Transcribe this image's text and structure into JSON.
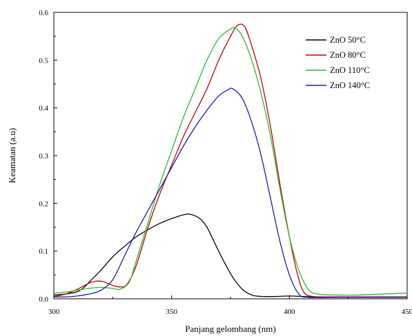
{
  "chart_data": {
    "type": "line",
    "xlabel": "Panjang gelombang (nm)",
    "ylabel": "Keamatan (a.u)",
    "xlim": [
      300,
      450
    ],
    "ylim": [
      0,
      0.6
    ],
    "x_ticks": [
      300,
      350,
      400,
      450
    ],
    "y_ticks": [
      "0.0",
      "0.1",
      "0.2",
      "0.3",
      "0.4",
      "0.5",
      "0.6"
    ],
    "grid": false,
    "legend_position": "top-right",
    "series": [
      {
        "name": "ZnO 50°C",
        "color": "#000000",
        "points": [
          [
            300,
            0.008
          ],
          [
            305,
            0.01
          ],
          [
            310,
            0.015
          ],
          [
            313,
            0.025
          ],
          [
            316,
            0.04
          ],
          [
            320,
            0.06
          ],
          [
            325,
            0.088
          ],
          [
            330,
            0.11
          ],
          [
            335,
            0.13
          ],
          [
            340,
            0.145
          ],
          [
            345,
            0.158
          ],
          [
            350,
            0.168
          ],
          [
            355,
            0.176
          ],
          [
            358,
            0.177
          ],
          [
            362,
            0.168
          ],
          [
            365,
            0.15
          ],
          [
            368,
            0.12
          ],
          [
            372,
            0.08
          ],
          [
            376,
            0.045
          ],
          [
            380,
            0.02
          ],
          [
            384,
            0.008
          ],
          [
            388,
            0.005
          ],
          [
            395,
            0.005
          ],
          [
            400,
            0.006
          ],
          [
            405,
            0.005
          ],
          [
            410,
            0.004
          ],
          [
            420,
            0.004
          ],
          [
            430,
            0.004
          ],
          [
            440,
            0.004
          ],
          [
            450,
            0.004
          ]
        ]
      },
      {
        "name": "ZnO 80°C",
        "color": "#c00000",
        "points": [
          [
            300,
            0.005
          ],
          [
            305,
            0.01
          ],
          [
            310,
            0.02
          ],
          [
            315,
            0.033
          ],
          [
            318,
            0.037
          ],
          [
            321,
            0.036
          ],
          [
            325,
            0.028
          ],
          [
            328,
            0.025
          ],
          [
            331,
            0.03
          ],
          [
            335,
            0.07
          ],
          [
            340,
            0.15
          ],
          [
            345,
            0.22
          ],
          [
            350,
            0.28
          ],
          [
            355,
            0.34
          ],
          [
            360,
            0.39
          ],
          [
            365,
            0.44
          ],
          [
            370,
            0.5
          ],
          [
            375,
            0.55
          ],
          [
            378,
            0.573
          ],
          [
            381,
            0.57
          ],
          [
            384,
            0.53
          ],
          [
            388,
            0.46
          ],
          [
            392,
            0.36
          ],
          [
            396,
            0.24
          ],
          [
            400,
            0.13
          ],
          [
            403,
            0.06
          ],
          [
            406,
            0.015
          ],
          [
            410,
            0.005
          ],
          [
            420,
            0.004
          ],
          [
            430,
            0.004
          ],
          [
            440,
            0.004
          ],
          [
            450,
            0.004
          ]
        ]
      },
      {
        "name": "ZnO 110°C",
        "color": "#2db82d",
        "points": [
          [
            300,
            0.012
          ],
          [
            305,
            0.014
          ],
          [
            310,
            0.018
          ],
          [
            315,
            0.022
          ],
          [
            320,
            0.024
          ],
          [
            325,
            0.022
          ],
          [
            328,
            0.02
          ],
          [
            332,
            0.035
          ],
          [
            335,
            0.08
          ],
          [
            340,
            0.16
          ],
          [
            345,
            0.24
          ],
          [
            350,
            0.31
          ],
          [
            355,
            0.38
          ],
          [
            360,
            0.44
          ],
          [
            365,
            0.5
          ],
          [
            370,
            0.545
          ],
          [
            375,
            0.565
          ],
          [
            377,
            0.567
          ],
          [
            380,
            0.55
          ],
          [
            384,
            0.5
          ],
          [
            388,
            0.43
          ],
          [
            392,
            0.34
          ],
          [
            396,
            0.23
          ],
          [
            400,
            0.13
          ],
          [
            404,
            0.06
          ],
          [
            408,
            0.02
          ],
          [
            412,
            0.01
          ],
          [
            420,
            0.008
          ],
          [
            430,
            0.008
          ],
          [
            440,
            0.01
          ],
          [
            450,
            0.012
          ]
        ]
      },
      {
        "name": "ZnO 140°C",
        "color": "#1a1aaa",
        "points": [
          [
            300,
            0.004
          ],
          [
            305,
            0.004
          ],
          [
            310,
            0.006
          ],
          [
            315,
            0.01
          ],
          [
            320,
            0.018
          ],
          [
            325,
            0.04
          ],
          [
            330,
            0.09
          ],
          [
            335,
            0.14
          ],
          [
            340,
            0.185
          ],
          [
            345,
            0.23
          ],
          [
            350,
            0.275
          ],
          [
            355,
            0.32
          ],
          [
            360,
            0.36
          ],
          [
            365,
            0.395
          ],
          [
            370,
            0.425
          ],
          [
            374,
            0.438
          ],
          [
            376,
            0.44
          ],
          [
            380,
            0.42
          ],
          [
            384,
            0.37
          ],
          [
            388,
            0.3
          ],
          [
            392,
            0.21
          ],
          [
            396,
            0.12
          ],
          [
            400,
            0.05
          ],
          [
            404,
            0.01
          ],
          [
            408,
            0.003
          ],
          [
            420,
            0.003
          ],
          [
            430,
            0.003
          ],
          [
            440,
            0.003
          ],
          [
            450,
            0.003
          ]
        ]
      }
    ]
  }
}
